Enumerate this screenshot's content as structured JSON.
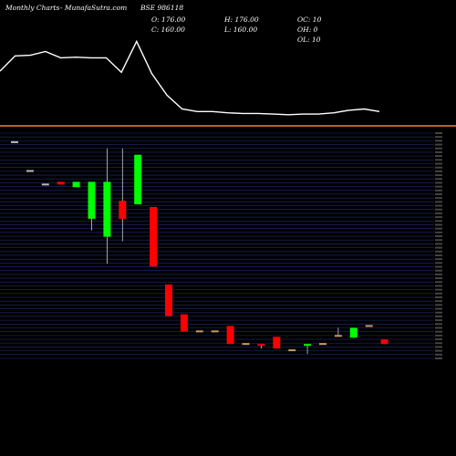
{
  "header": {
    "period": "Monthly Charts",
    "site": "- MunafaSutra.com",
    "symbol": "BSE 986118"
  },
  "ohlc": {
    "open": "O: 176.00",
    "high": "H: 176.00",
    "close": "C: 160.00",
    "low": "L: 160.00",
    "oc": "OC: 10",
    "oh": "OH: 0",
    "ol": "OL: 10"
  },
  "colors": {
    "background": "#000000",
    "up": "#00ff00",
    "down": "#ff0000",
    "line": "#ffffff",
    "separator": "#ff7f27",
    "grid": "#2a3a8a"
  },
  "chart_data": [
    {
      "type": "line",
      "x": [
        1,
        2,
        3,
        4,
        5,
        6,
        7,
        8,
        9,
        10,
        11,
        12,
        13,
        14,
        15,
        16,
        17,
        18,
        19,
        20,
        21,
        22,
        23,
        24,
        25,
        26
      ],
      "values": [
        62,
        38,
        37,
        31,
        41,
        40,
        41,
        41,
        64,
        15,
        66,
        100,
        122,
        126,
        126,
        128,
        129,
        129,
        130,
        131,
        130,
        130,
        128,
        124,
        122,
        126
      ],
      "ylim": [
        0,
        140
      ],
      "note_units": "relative-index"
    },
    {
      "type": "candlestick",
      "candles": [
        {
          "open": 330,
          "high": 330,
          "low": 330,
          "close": 330
        },
        {
          "open": 298,
          "high": 298,
          "low": 298,
          "close": 298
        },
        {
          "open": 283,
          "high": 283,
          "low": 283,
          "close": 283
        },
        {
          "open": 286,
          "high": 286,
          "low": 283,
          "close": 283
        },
        {
          "open": 280,
          "high": 286,
          "low": 280,
          "close": 286
        },
        {
          "open": 245,
          "high": 286,
          "low": 232,
          "close": 286
        },
        {
          "open": 225,
          "high": 323,
          "low": 195,
          "close": 286
        },
        {
          "open": 265,
          "high": 323,
          "low": 220,
          "close": 245
        },
        {
          "open": 261,
          "high": 316,
          "low": 261,
          "close": 316
        },
        {
          "open": 258,
          "high": 258,
          "low": 192,
          "close": 192
        },
        {
          "open": 172,
          "high": 172,
          "low": 137,
          "close": 137
        },
        {
          "open": 139,
          "high": 139,
          "low": 120,
          "close": 120
        },
        {
          "open": 120,
          "high": 120,
          "low": 120,
          "close": 120
        },
        {
          "open": 120,
          "high": 120,
          "low": 120,
          "close": 120
        },
        {
          "open": 126,
          "high": 126,
          "low": 106,
          "close": 106
        },
        {
          "open": 106,
          "high": 106,
          "low": 106,
          "close": 106
        },
        {
          "open": 106,
          "high": 106,
          "low": 101,
          "close": 104
        },
        {
          "open": 114,
          "high": 114,
          "low": 101,
          "close": 101
        },
        {
          "open": 99,
          "high": 99,
          "low": 99,
          "close": 99
        },
        {
          "open": 104,
          "high": 106,
          "low": 95,
          "close": 106
        },
        {
          "open": 106,
          "high": 106,
          "low": 106,
          "close": 106
        },
        {
          "open": 115,
          "high": 124,
          "low": 115,
          "close": 115
        },
        {
          "open": 113,
          "high": 124,
          "low": 113,
          "close": 124
        },
        {
          "open": 126,
          "high": 126,
          "low": 126,
          "close": 126
        },
        {
          "open": 111,
          "high": 111,
          "low": 106,
          "close": 106
        }
      ],
      "ylim": [
        90,
        340
      ]
    }
  ]
}
